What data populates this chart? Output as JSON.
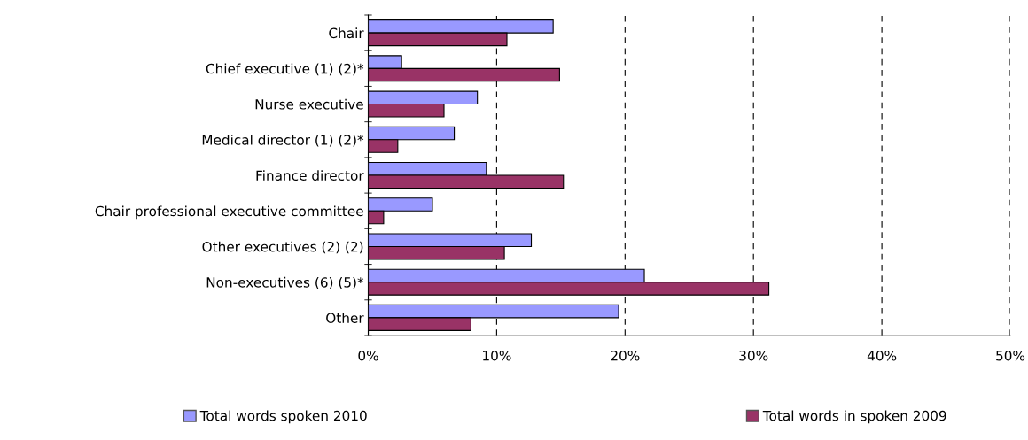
{
  "chart_data": {
    "type": "bar",
    "orientation": "horizontal",
    "categories": [
      "Chair",
      "Chief executive (1) (2)*",
      "Nurse executive",
      "Medical director (1) (2)*",
      "Finance director",
      "Chair professional executive committee",
      "Other executives (2) (2)",
      "Non-executives (6) (5)*",
      "Other"
    ],
    "series": [
      {
        "name": "Total words spoken 2010",
        "color": "#9999ff",
        "values": [
          14.4,
          2.6,
          8.5,
          6.7,
          9.2,
          5.0,
          12.7,
          21.5,
          19.5
        ]
      },
      {
        "name": "Total words in spoken 2009",
        "color": "#993366",
        "values": [
          10.8,
          14.9,
          5.9,
          2.3,
          15.2,
          1.2,
          10.6,
          31.2,
          8.0
        ]
      }
    ],
    "xlim": [
      0,
      50
    ],
    "xticks": [
      {
        "value": 0,
        "label": "0%"
      },
      {
        "value": 10,
        "label": "10%"
      },
      {
        "value": 20,
        "label": "20%"
      },
      {
        "value": 30,
        "label": "30%"
      },
      {
        "value": 40,
        "label": "40%"
      },
      {
        "value": 50,
        "label": "50%"
      }
    ],
    "grid": "x",
    "legend": "bottom"
  }
}
